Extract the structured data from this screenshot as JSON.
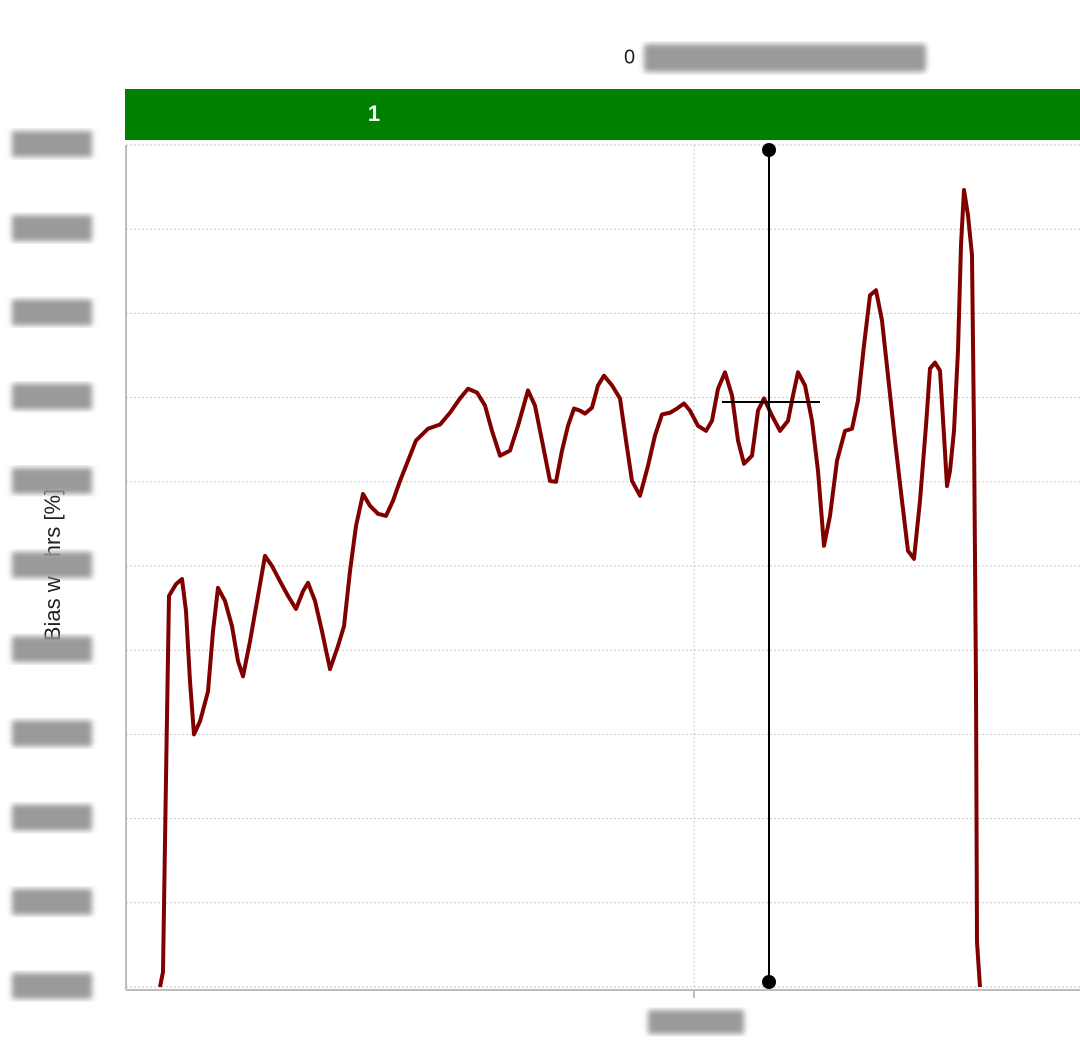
{
  "chart_data": {
    "type": "line",
    "title": "0",
    "band_label": "1",
    "y_label": "Bias w Thrs [%]",
    "xlim": [
      0,
      954
    ],
    "xticks": [
      568
    ],
    "ylim": [
      40,
      60
    ],
    "yticks": [
      40,
      42,
      44,
      46,
      48,
      50,
      52,
      54,
      56,
      58,
      60
    ],
    "grid": true,
    "band_color": "#008000",
    "series": [
      {
        "color": "#800000",
        "x": [
          34,
          37,
          39,
          41,
          43,
          50,
          56,
          60,
          64,
          68,
          74,
          82,
          87,
          92,
          99,
          106,
          112,
          117,
          124,
          132,
          139,
          146,
          154,
          162,
          170,
          177,
          182,
          189,
          196,
          204,
          212,
          218,
          224,
          230,
          237,
          244,
          252,
          260,
          267,
          274,
          282,
          290,
          302,
          314,
          324,
          334,
          342,
          351,
          359,
          366,
          374,
          384,
          392,
          402,
          409,
          416,
          424,
          430,
          436,
          442,
          448,
          454,
          459,
          466,
          472,
          478,
          486,
          494,
          500,
          506,
          514,
          522,
          529,
          536,
          544,
          551,
          558,
          564,
          572,
          580,
          586,
          592,
          599,
          606,
          612,
          618,
          626,
          632,
          638,
          646,
          654,
          662,
          667,
          672,
          679,
          686,
          692,
          698,
          704,
          711,
          719,
          726,
          732,
          738,
          744,
          750,
          756,
          762,
          769,
          776,
          782,
          788,
          794,
          800,
          804,
          809,
          814,
          818,
          821,
          824,
          828,
          832,
          835,
          838,
          842,
          846,
          848,
          850,
          851,
          854
        ],
        "values": [
          40.0,
          40.36,
          43.45,
          46.43,
          49.29,
          49.57,
          49.69,
          48.93,
          47.26,
          46.0,
          46.31,
          47.02,
          48.45,
          49.48,
          49.17,
          48.57,
          47.74,
          47.38,
          48.21,
          49.29,
          50.24,
          50.0,
          49.64,
          49.29,
          48.98,
          49.4,
          49.6,
          49.17,
          48.45,
          47.55,
          48.1,
          48.57,
          49.88,
          50.95,
          51.71,
          51.43,
          51.24,
          51.19,
          51.55,
          52.02,
          52.5,
          52.98,
          53.26,
          53.36,
          53.64,
          53.98,
          54.21,
          54.12,
          53.81,
          53.21,
          52.62,
          52.74,
          53.33,
          54.17,
          53.81,
          52.98,
          52.02,
          52.0,
          52.74,
          53.33,
          53.74,
          53.69,
          53.62,
          53.76,
          54.29,
          54.52,
          54.29,
          53.98,
          52.98,
          52.02,
          51.67,
          52.38,
          53.1,
          53.6,
          53.64,
          53.74,
          53.86,
          53.69,
          53.33,
          53.21,
          53.45,
          54.21,
          54.6,
          54.05,
          52.98,
          52.43,
          52.62,
          53.69,
          53.98,
          53.57,
          53.21,
          53.45,
          54.05,
          54.6,
          54.29,
          53.45,
          52.26,
          50.48,
          51.19,
          52.5,
          53.21,
          53.26,
          53.93,
          55.24,
          56.43,
          56.55,
          55.83,
          54.52,
          52.98,
          51.55,
          50.36,
          50.17,
          51.55,
          53.33,
          54.69,
          54.83,
          54.64,
          53.1,
          51.9,
          52.26,
          53.21,
          55.12,
          57.62,
          58.93,
          58.33,
          57.38,
          53.21,
          47.14,
          41.07,
          40.0
        ]
      }
    ]
  }
}
